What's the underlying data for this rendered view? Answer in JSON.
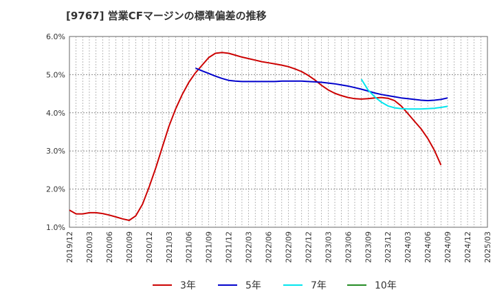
{
  "chart_data": {
    "type": "line",
    "title": "[9767]  営業CFマージンの標準偏差の推移",
    "xlabel": "",
    "ylabel": "",
    "ylim": [
      1.0,
      6.0
    ],
    "y_ticks": [
      "1.0%",
      "2.0%",
      "3.0%",
      "4.0%",
      "5.0%",
      "6.0%"
    ],
    "x_ticks": [
      "2019/12",
      "2020/03",
      "2020/06",
      "2020/09",
      "2020/12",
      "2021/03",
      "2021/06",
      "2021/09",
      "2021/12",
      "2022/03",
      "2022/06",
      "2022/09",
      "2022/12",
      "2023/03",
      "2023/06",
      "2023/09",
      "2023/12",
      "2024/03",
      "2024/06",
      "2024/09",
      "2024/12",
      "2025/03"
    ],
    "grid": true,
    "legend_position": "bottom",
    "series": [
      {
        "name": "3年",
        "color": "#cc0000",
        "points": [
          [
            "2019/12",
            1.45
          ],
          [
            "2020/01",
            1.35
          ],
          [
            "2020/02",
            1.35
          ],
          [
            "2020/03",
            1.38
          ],
          [
            "2020/04",
            1.38
          ],
          [
            "2020/05",
            1.36
          ],
          [
            "2020/06",
            1.32
          ],
          [
            "2020/07",
            1.27
          ],
          [
            "2020/08",
            1.22
          ],
          [
            "2020/09",
            1.18
          ],
          [
            "2020/10",
            1.3
          ],
          [
            "2020/11",
            1.6
          ],
          [
            "2020/12",
            2.05
          ],
          [
            "2021/01",
            2.55
          ],
          [
            "2021/02",
            3.1
          ],
          [
            "2021/03",
            3.65
          ],
          [
            "2021/04",
            4.1
          ],
          [
            "2021/05",
            4.48
          ],
          [
            "2021/06",
            4.8
          ],
          [
            "2021/07",
            5.05
          ],
          [
            "2021/08",
            5.25
          ],
          [
            "2021/09",
            5.45
          ],
          [
            "2021/10",
            5.56
          ],
          [
            "2021/11",
            5.58
          ],
          [
            "2021/12",
            5.56
          ],
          [
            "2022/01",
            5.51
          ],
          [
            "2022/02",
            5.46
          ],
          [
            "2022/03",
            5.42
          ],
          [
            "2022/04",
            5.38
          ],
          [
            "2022/05",
            5.34
          ],
          [
            "2022/06",
            5.31
          ],
          [
            "2022/07",
            5.28
          ],
          [
            "2022/08",
            5.25
          ],
          [
            "2022/09",
            5.21
          ],
          [
            "2022/10",
            5.15
          ],
          [
            "2022/11",
            5.08
          ],
          [
            "2022/12",
            4.98
          ],
          [
            "2023/01",
            4.86
          ],
          [
            "2023/02",
            4.72
          ],
          [
            "2023/03",
            4.6
          ],
          [
            "2023/04",
            4.51
          ],
          [
            "2023/05",
            4.45
          ],
          [
            "2023/06",
            4.4
          ],
          [
            "2023/07",
            4.37
          ],
          [
            "2023/08",
            4.36
          ],
          [
            "2023/09",
            4.37
          ],
          [
            "2023/10",
            4.39
          ],
          [
            "2023/11",
            4.4
          ],
          [
            "2023/12",
            4.38
          ],
          [
            "2024/01",
            4.32
          ],
          [
            "2024/02",
            4.18
          ],
          [
            "2024/03",
            3.98
          ],
          [
            "2024/04",
            3.78
          ],
          [
            "2024/05",
            3.58
          ],
          [
            "2024/06",
            3.33
          ],
          [
            "2024/07",
            3.02
          ],
          [
            "2024/08",
            2.63
          ]
        ]
      },
      {
        "name": "5年",
        "color": "#0000cc",
        "points": [
          [
            "2021/07",
            5.17
          ],
          [
            "2021/08",
            5.1
          ],
          [
            "2021/09",
            5.03
          ],
          [
            "2021/10",
            4.96
          ],
          [
            "2021/11",
            4.9
          ],
          [
            "2021/12",
            4.85
          ],
          [
            "2022/01",
            4.83
          ],
          [
            "2022/02",
            4.82
          ],
          [
            "2022/03",
            4.82
          ],
          [
            "2022/04",
            4.82
          ],
          [
            "2022/05",
            4.82
          ],
          [
            "2022/06",
            4.82
          ],
          [
            "2022/07",
            4.82
          ],
          [
            "2022/08",
            4.83
          ],
          [
            "2022/09",
            4.83
          ],
          [
            "2022/10",
            4.83
          ],
          [
            "2022/11",
            4.83
          ],
          [
            "2022/12",
            4.82
          ],
          [
            "2023/01",
            4.81
          ],
          [
            "2023/02",
            4.8
          ],
          [
            "2023/03",
            4.78
          ],
          [
            "2023/04",
            4.76
          ],
          [
            "2023/05",
            4.73
          ],
          [
            "2023/06",
            4.7
          ],
          [
            "2023/07",
            4.66
          ],
          [
            "2023/08",
            4.62
          ],
          [
            "2023/09",
            4.57
          ],
          [
            "2023/10",
            4.52
          ],
          [
            "2023/11",
            4.48
          ],
          [
            "2023/12",
            4.45
          ],
          [
            "2024/01",
            4.42
          ],
          [
            "2024/02",
            4.39
          ],
          [
            "2024/03",
            4.37
          ],
          [
            "2024/04",
            4.35
          ],
          [
            "2024/05",
            4.33
          ],
          [
            "2024/06",
            4.32
          ],
          [
            "2024/07",
            4.33
          ],
          [
            "2024/08",
            4.35
          ],
          [
            "2024/09",
            4.39
          ]
        ]
      },
      {
        "name": "7年",
        "color": "#00e5ee",
        "points": [
          [
            "2023/08",
            4.88
          ],
          [
            "2023/09",
            4.6
          ],
          [
            "2023/10",
            4.42
          ],
          [
            "2023/11",
            4.28
          ],
          [
            "2023/12",
            4.18
          ],
          [
            "2024/01",
            4.13
          ],
          [
            "2024/02",
            4.11
          ],
          [
            "2024/03",
            4.1
          ],
          [
            "2024/04",
            4.1
          ],
          [
            "2024/05",
            4.1
          ],
          [
            "2024/06",
            4.11
          ],
          [
            "2024/07",
            4.12
          ],
          [
            "2024/08",
            4.14
          ],
          [
            "2024/09",
            4.17
          ]
        ]
      },
      {
        "name": "10年",
        "color": "#228b22",
        "points": []
      }
    ]
  }
}
